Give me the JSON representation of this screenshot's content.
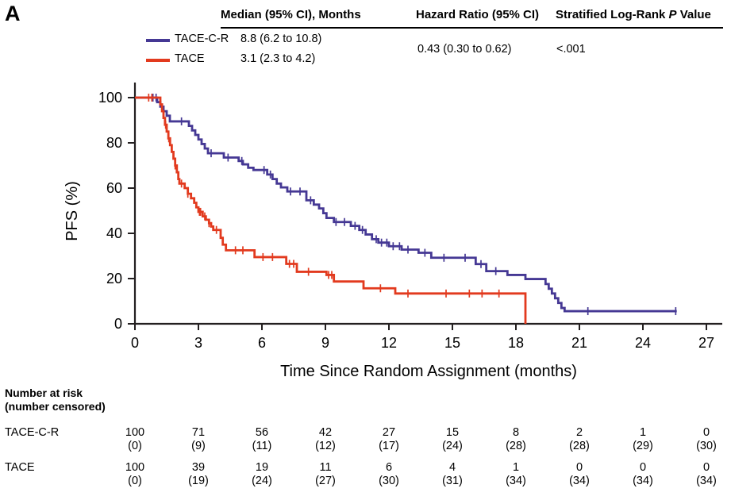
{
  "panel_label": "A",
  "summary": {
    "col_median_header": "Median (95% CI), Months",
    "col_hr_header": "Hazard Ratio (95% CI)",
    "col_p_prefix": "Stratified Log-Rank ",
    "col_p_italic": "P",
    "col_p_suffix": " Value",
    "rows": [
      {
        "label": "TACE-C-R",
        "median": "8.8 (6.2 to 10.8)"
      },
      {
        "label": "TACE",
        "median": "3.1 (2.3 to 4.2)"
      }
    ],
    "hazard_ratio": "0.43 (0.30 to 0.62)",
    "p_value": "<.001"
  },
  "chart_data": {
    "type": "line",
    "subtype": "kaplan-meier-step",
    "title": "",
    "xlabel": "Time Since Random Assignment (months)",
    "ylabel": "PFS (%)",
    "xticks": [
      0,
      3,
      6,
      9,
      12,
      15,
      18,
      21,
      24,
      27
    ],
    "yticks": [
      0,
      20,
      40,
      60,
      80,
      100
    ],
    "xlim": [
      0,
      27.75
    ],
    "ylim": [
      0,
      100
    ],
    "grid": false,
    "legend_position": "top-left",
    "series": [
      {
        "name": "TACE-C-R",
        "color": "#453894",
        "median_months": 8.8,
        "steps": [
          [
            0,
            100
          ],
          [
            1.05,
            98
          ],
          [
            1.2,
            96
          ],
          [
            1.35,
            94
          ],
          [
            1.5,
            92
          ],
          [
            1.65,
            89.5
          ],
          [
            2.55,
            87.5
          ],
          [
            2.7,
            85.5
          ],
          [
            2.85,
            83.5
          ],
          [
            3.0,
            81.5
          ],
          [
            3.15,
            79.5
          ],
          [
            3.3,
            77.5
          ],
          [
            3.45,
            75.4
          ],
          [
            4.2,
            73.5
          ],
          [
            4.9,
            72
          ],
          [
            5.1,
            70.5
          ],
          [
            5.35,
            69
          ],
          [
            5.6,
            68
          ],
          [
            6.25,
            66
          ],
          [
            6.5,
            64
          ],
          [
            6.7,
            62
          ],
          [
            6.9,
            60.3
          ],
          [
            7.2,
            58.5
          ],
          [
            8.1,
            54.6
          ],
          [
            8.45,
            52.7
          ],
          [
            8.7,
            51
          ],
          [
            8.9,
            48.9
          ],
          [
            9.05,
            46.8
          ],
          [
            9.4,
            45
          ],
          [
            10.2,
            43.3
          ],
          [
            10.6,
            41.5
          ],
          [
            10.9,
            39.5
          ],
          [
            11.2,
            37.4
          ],
          [
            11.5,
            35.9
          ],
          [
            12.0,
            34.3
          ],
          [
            12.6,
            32.8
          ],
          [
            13.4,
            31.4
          ],
          [
            14.0,
            29.2
          ],
          [
            16.1,
            26.4
          ],
          [
            16.6,
            23.3
          ],
          [
            17.6,
            21.6
          ],
          [
            18.45,
            19.8
          ],
          [
            19.4,
            17.6
          ],
          [
            19.55,
            15.5
          ],
          [
            19.7,
            13.4
          ],
          [
            19.85,
            11.3
          ],
          [
            20.0,
            9.2
          ],
          [
            20.15,
            7.0
          ],
          [
            20.3,
            5.6
          ]
        ],
        "end_time": 25.6,
        "censor_times": [
          0.85,
          1.0,
          2.2,
          3.6,
          4.4,
          5.05,
          6.1,
          6.4,
          7.35,
          7.8,
          8.3,
          9.5,
          9.9,
          10.4,
          10.75,
          11.4,
          11.65,
          11.9,
          12.2,
          12.5,
          12.9,
          13.7,
          14.6,
          15.6,
          16.35,
          17.05,
          21.4,
          25.55
        ]
      },
      {
        "name": "TACE",
        "color": "#e23a1e",
        "median_months": 3.1,
        "steps": [
          [
            0,
            100
          ],
          [
            1.2,
            97
          ],
          [
            1.28,
            94
          ],
          [
            1.35,
            91
          ],
          [
            1.42,
            88
          ],
          [
            1.5,
            85
          ],
          [
            1.58,
            82
          ],
          [
            1.66,
            79
          ],
          [
            1.74,
            76
          ],
          [
            1.82,
            73
          ],
          [
            1.9,
            70
          ],
          [
            1.98,
            67
          ],
          [
            2.05,
            64
          ],
          [
            2.1,
            62
          ],
          [
            2.35,
            60
          ],
          [
            2.5,
            57.5
          ],
          [
            2.65,
            55.5
          ],
          [
            2.8,
            53.5
          ],
          [
            2.9,
            51.5
          ],
          [
            3.0,
            49.5
          ],
          [
            3.2,
            47.5
          ],
          [
            3.35,
            46
          ],
          [
            3.5,
            44.5
          ],
          [
            3.6,
            43
          ],
          [
            3.7,
            41.5
          ],
          [
            4.05,
            38
          ],
          [
            4.15,
            35
          ],
          [
            4.3,
            32.5
          ],
          [
            5.65,
            29.5
          ],
          [
            7.15,
            26.5
          ],
          [
            7.65,
            23
          ],
          [
            9.05,
            21.6
          ],
          [
            9.4,
            18.7
          ],
          [
            10.8,
            15.7
          ],
          [
            12.3,
            13.4
          ],
          [
            18.45,
            0
          ]
        ],
        "end_time": 18.45,
        "censor_times": [
          0.65,
          0.8,
          1.45,
          1.6,
          1.9,
          2.2,
          2.5,
          3.05,
          3.1,
          3.3,
          3.5,
          3.85,
          4.75,
          5.1,
          6.05,
          6.5,
          7.3,
          7.5,
          8.2,
          9.15,
          9.3,
          11.6,
          12.9,
          14.7,
          15.8,
          16.4,
          17.2
        ]
      }
    ]
  },
  "risk_table": {
    "title_line1": "Number at risk",
    "title_line2": "(number censored)",
    "time_points": [
      0,
      3,
      6,
      9,
      12,
      15,
      18,
      21,
      24,
      27
    ],
    "rows": [
      {
        "label": "TACE-C-R",
        "counts": [
          100,
          71,
          56,
          42,
          27,
          15,
          8,
          2,
          1,
          0
        ],
        "censored": [
          0,
          9,
          11,
          12,
          17,
          24,
          28,
          28,
          29,
          30
        ]
      },
      {
        "label": "TACE",
        "counts": [
          100,
          39,
          19,
          11,
          6,
          4,
          1,
          0,
          0,
          0
        ],
        "censored": [
          0,
          19,
          24,
          27,
          30,
          31,
          34,
          34,
          34,
          34
        ]
      }
    ]
  },
  "colors": {
    "axis": "#231f20",
    "curve_tace_c_r": "#453894",
    "curve_tace": "#e23a1e"
  }
}
